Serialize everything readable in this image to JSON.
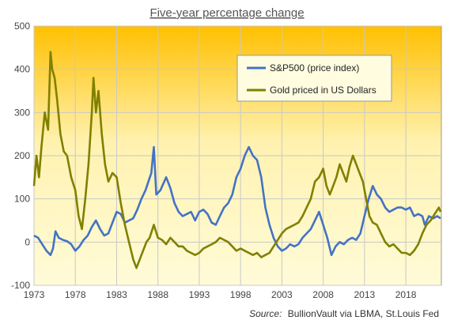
{
  "chart_data": {
    "type": "line",
    "title": "Five-year percentage change",
    "xlabel": "",
    "ylabel": "",
    "xlim": [
      1973,
      2022.3
    ],
    "ylim": [
      -100,
      500
    ],
    "x_ticks": [
      "1973",
      "1978",
      "1983",
      "1988",
      "1993",
      "1998",
      "2003",
      "2008",
      "2013",
      "2018"
    ],
    "y_ticks": [
      "500",
      "400",
      "300",
      "200",
      "100",
      "0",
      "-100"
    ],
    "grid": true,
    "legend_position": "top-right",
    "series": [
      {
        "name": "S&P500 (price index)",
        "color": "#4472C4",
        "points": [
          [
            1973.0,
            15
          ],
          [
            1973.5,
            10
          ],
          [
            1974.0,
            -5
          ],
          [
            1974.5,
            -20
          ],
          [
            1975.0,
            -30
          ],
          [
            1975.3,
            -15
          ],
          [
            1975.6,
            25
          ],
          [
            1976.0,
            10
          ],
          [
            1976.5,
            5
          ],
          [
            1977.0,
            2
          ],
          [
            1977.5,
            -5
          ],
          [
            1978.0,
            -20
          ],
          [
            1978.5,
            -10
          ],
          [
            1979.0,
            5
          ],
          [
            1979.5,
            15
          ],
          [
            1980.0,
            35
          ],
          [
            1980.5,
            50
          ],
          [
            1981.0,
            30
          ],
          [
            1981.5,
            15
          ],
          [
            1982.0,
            20
          ],
          [
            1982.5,
            45
          ],
          [
            1983.0,
            70
          ],
          [
            1983.5,
            65
          ],
          [
            1984.0,
            45
          ],
          [
            1984.5,
            50
          ],
          [
            1985.0,
            55
          ],
          [
            1985.5,
            75
          ],
          [
            1986.0,
            100
          ],
          [
            1986.5,
            120
          ],
          [
            1987.2,
            160
          ],
          [
            1987.5,
            220
          ],
          [
            1987.8,
            110
          ],
          [
            1988.3,
            120
          ],
          [
            1989.0,
            150
          ],
          [
            1989.5,
            125
          ],
          [
            1990.0,
            90
          ],
          [
            1990.5,
            70
          ],
          [
            1991.0,
            60
          ],
          [
            1991.5,
            65
          ],
          [
            1992.0,
            70
          ],
          [
            1992.5,
            50
          ],
          [
            1993.0,
            70
          ],
          [
            1993.5,
            75
          ],
          [
            1994.0,
            65
          ],
          [
            1994.5,
            45
          ],
          [
            1995.0,
            40
          ],
          [
            1995.5,
            60
          ],
          [
            1996.0,
            80
          ],
          [
            1996.5,
            90
          ],
          [
            1997.0,
            110
          ],
          [
            1997.5,
            150
          ],
          [
            1998.0,
            170
          ],
          [
            1998.5,
            200
          ],
          [
            1999.0,
            220
          ],
          [
            1999.5,
            200
          ],
          [
            2000.0,
            190
          ],
          [
            2000.5,
            150
          ],
          [
            2001.0,
            80
          ],
          [
            2001.5,
            40
          ],
          [
            2002.0,
            10
          ],
          [
            2002.5,
            -10
          ],
          [
            2003.0,
            -20
          ],
          [
            2003.5,
            -15
          ],
          [
            2004.0,
            -5
          ],
          [
            2004.5,
            -10
          ],
          [
            2005.0,
            -5
          ],
          [
            2005.5,
            10
          ],
          [
            2006.0,
            20
          ],
          [
            2006.5,
            30
          ],
          [
            2007.0,
            50
          ],
          [
            2007.5,
            70
          ],
          [
            2008.0,
            40
          ],
          [
            2008.5,
            10
          ],
          [
            2009.0,
            -30
          ],
          [
            2009.5,
            -10
          ],
          [
            2010.0,
            0
          ],
          [
            2010.5,
            -5
          ],
          [
            2011.0,
            5
          ],
          [
            2011.5,
            10
          ],
          [
            2012.0,
            5
          ],
          [
            2012.5,
            20
          ],
          [
            2013.0,
            60
          ],
          [
            2013.5,
            100
          ],
          [
            2014.0,
            130
          ],
          [
            2014.5,
            110
          ],
          [
            2015.0,
            100
          ],
          [
            2015.5,
            80
          ],
          [
            2016.0,
            70
          ],
          [
            2016.5,
            75
          ],
          [
            2017.0,
            80
          ],
          [
            2017.5,
            80
          ],
          [
            2018.0,
            75
          ],
          [
            2018.5,
            80
          ],
          [
            2019.0,
            60
          ],
          [
            2019.5,
            65
          ],
          [
            2020.0,
            60
          ],
          [
            2020.3,
            40
          ],
          [
            2020.8,
            60
          ],
          [
            2021.3,
            55
          ],
          [
            2021.8,
            60
          ],
          [
            2022.2,
            55
          ]
        ]
      },
      {
        "name": "Gold priced in US Dollars",
        "color": "#808000",
        "points": [
          [
            1973.0,
            130
          ],
          [
            1973.3,
            200
          ],
          [
            1973.6,
            150
          ],
          [
            1973.9,
            220
          ],
          [
            1974.3,
            300
          ],
          [
            1974.7,
            260
          ],
          [
            1975.0,
            440
          ],
          [
            1975.2,
            400
          ],
          [
            1975.5,
            380
          ],
          [
            1975.8,
            330
          ],
          [
            1976.2,
            250
          ],
          [
            1976.6,
            210
          ],
          [
            1977.0,
            200
          ],
          [
            1977.5,
            150
          ],
          [
            1978.0,
            120
          ],
          [
            1978.4,
            60
          ],
          [
            1978.8,
            30
          ],
          [
            1979.2,
            100
          ],
          [
            1979.6,
            180
          ],
          [
            1980.0,
            300
          ],
          [
            1980.2,
            380
          ],
          [
            1980.5,
            300
          ],
          [
            1980.8,
            350
          ],
          [
            1981.2,
            250
          ],
          [
            1981.6,
            180
          ],
          [
            1982.0,
            140
          ],
          [
            1982.5,
            160
          ],
          [
            1983.0,
            150
          ],
          [
            1983.5,
            90
          ],
          [
            1984.0,
            40
          ],
          [
            1984.5,
            0
          ],
          [
            1985.0,
            -40
          ],
          [
            1985.4,
            -60
          ],
          [
            1985.8,
            -40
          ],
          [
            1986.2,
            -20
          ],
          [
            1986.6,
            0
          ],
          [
            1987.0,
            10
          ],
          [
            1987.5,
            40
          ],
          [
            1988.0,
            10
          ],
          [
            1988.5,
            5
          ],
          [
            1989.0,
            -5
          ],
          [
            1989.5,
            10
          ],
          [
            1990.0,
            0
          ],
          [
            1990.5,
            -10
          ],
          [
            1991.0,
            -10
          ],
          [
            1991.5,
            -20
          ],
          [
            1992.0,
            -25
          ],
          [
            1992.5,
            -30
          ],
          [
            1993.0,
            -25
          ],
          [
            1993.5,
            -15
          ],
          [
            1994.0,
            -10
          ],
          [
            1994.5,
            -5
          ],
          [
            1995.0,
            0
          ],
          [
            1995.5,
            10
          ],
          [
            1996.0,
            5
          ],
          [
            1996.5,
            0
          ],
          [
            1997.0,
            -10
          ],
          [
            1997.5,
            -20
          ],
          [
            1998.0,
            -15
          ],
          [
            1998.5,
            -20
          ],
          [
            1999.0,
            -25
          ],
          [
            1999.5,
            -30
          ],
          [
            2000.0,
            -25
          ],
          [
            2000.5,
            -35
          ],
          [
            2001.0,
            -30
          ],
          [
            2001.5,
            -25
          ],
          [
            2002.0,
            -10
          ],
          [
            2002.5,
            5
          ],
          [
            2003.0,
            20
          ],
          [
            2003.5,
            30
          ],
          [
            2004.0,
            35
          ],
          [
            2004.5,
            40
          ],
          [
            2005.0,
            45
          ],
          [
            2005.5,
            60
          ],
          [
            2006.0,
            80
          ],
          [
            2006.5,
            100
          ],
          [
            2007.0,
            140
          ],
          [
            2007.5,
            150
          ],
          [
            2008.0,
            170
          ],
          [
            2008.4,
            130
          ],
          [
            2008.8,
            110
          ],
          [
            2009.2,
            130
          ],
          [
            2009.6,
            150
          ],
          [
            2010.0,
            180
          ],
          [
            2010.4,
            160
          ],
          [
            2010.8,
            140
          ],
          [
            2011.2,
            175
          ],
          [
            2011.6,
            200
          ],
          [
            2012.0,
            180
          ],
          [
            2012.4,
            160
          ],
          [
            2012.8,
            140
          ],
          [
            2013.2,
            100
          ],
          [
            2013.6,
            60
          ],
          [
            2014.0,
            45
          ],
          [
            2014.5,
            40
          ],
          [
            2015.0,
            20
          ],
          [
            2015.5,
            0
          ],
          [
            2016.0,
            -10
          ],
          [
            2016.5,
            -5
          ],
          [
            2017.0,
            -15
          ],
          [
            2017.5,
            -25
          ],
          [
            2018.0,
            -25
          ],
          [
            2018.5,
            -30
          ],
          [
            2019.0,
            -20
          ],
          [
            2019.5,
            -5
          ],
          [
            2020.0,
            20
          ],
          [
            2020.5,
            40
          ],
          [
            2021.0,
            50
          ],
          [
            2021.5,
            65
          ],
          [
            2022.0,
            80
          ],
          [
            2022.2,
            70
          ]
        ]
      }
    ]
  },
  "source": {
    "label": "Source:",
    "text": "BullionVault via LBMA, St.Louis Fed"
  }
}
